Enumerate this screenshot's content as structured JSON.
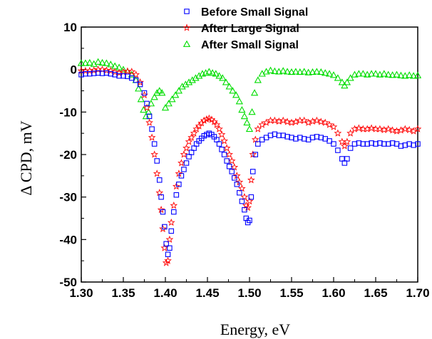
{
  "chart_data": {
    "type": "scatter",
    "title": "",
    "xlabel": "Energy, eV",
    "ylabel": "Δ CPD, mV",
    "xlim": [
      1.3,
      1.7
    ],
    "ylim": [
      -50,
      10
    ],
    "xticks": [
      "1.30",
      "1.35",
      "1.40",
      "1.45",
      "1.50",
      "1.55",
      "1.60",
      "1.65",
      "1.70"
    ],
    "yticks": [
      "10",
      "0",
      "-10",
      "-20",
      "-30",
      "-40",
      "-50"
    ],
    "grid": false,
    "legend_position": "top-center",
    "series": [
      {
        "name": "Before Small Signal",
        "marker": "square",
        "color": "#0000ff",
        "points": [
          [
            1.3,
            -1.2
          ],
          [
            1.305,
            -1.0
          ],
          [
            1.31,
            -1.0
          ],
          [
            1.315,
            -0.9
          ],
          [
            1.32,
            -0.8
          ],
          [
            1.325,
            -0.9
          ],
          [
            1.33,
            -0.8
          ],
          [
            1.335,
            -1.0
          ],
          [
            1.34,
            -1.2
          ],
          [
            1.345,
            -1.5
          ],
          [
            1.35,
            -1.5
          ],
          [
            1.355,
            -1.6
          ],
          [
            1.36,
            -2.0
          ],
          [
            1.365,
            -2.5
          ],
          [
            1.37,
            -3.5
          ],
          [
            1.375,
            -5.5
          ],
          [
            1.378,
            -8.0
          ],
          [
            1.381,
            -11.0
          ],
          [
            1.384,
            -14.0
          ],
          [
            1.387,
            -17.5
          ],
          [
            1.39,
            -21.5
          ],
          [
            1.393,
            -26.0
          ],
          [
            1.395,
            -30.0
          ],
          [
            1.397,
            -33.5
          ],
          [
            1.399,
            -37.0
          ],
          [
            1.401,
            -41.0
          ],
          [
            1.403,
            -43.5
          ],
          [
            1.405,
            -42.0
          ],
          [
            1.407,
            -38.0
          ],
          [
            1.41,
            -33.5
          ],
          [
            1.413,
            -29.5
          ],
          [
            1.416,
            -27.0
          ],
          [
            1.419,
            -25.0
          ],
          [
            1.422,
            -23.5
          ],
          [
            1.425,
            -22.0
          ],
          [
            1.428,
            -20.5
          ],
          [
            1.431,
            -19.5
          ],
          [
            1.434,
            -18.5
          ],
          [
            1.437,
            -17.5
          ],
          [
            1.44,
            -16.8
          ],
          [
            1.443,
            -16.2
          ],
          [
            1.446,
            -15.6
          ],
          [
            1.449,
            -15.3
          ],
          [
            1.452,
            -15.0
          ],
          [
            1.455,
            -15.3
          ],
          [
            1.458,
            -15.8
          ],
          [
            1.461,
            -16.5
          ],
          [
            1.464,
            -17.5
          ],
          [
            1.467,
            -18.8
          ],
          [
            1.47,
            -20.0
          ],
          [
            1.473,
            -21.5
          ],
          [
            1.476,
            -22.8
          ],
          [
            1.479,
            -24.0
          ],
          [
            1.482,
            -25.5
          ],
          [
            1.485,
            -27.0
          ],
          [
            1.488,
            -29.0
          ],
          [
            1.491,
            -31.0
          ],
          [
            1.494,
            -33.0
          ],
          [
            1.496,
            -35.0
          ],
          [
            1.498,
            -36.0
          ],
          [
            1.5,
            -35.5
          ],
          [
            1.502,
            -30.0
          ],
          [
            1.504,
            -24.0
          ],
          [
            1.507,
            -20.0
          ],
          [
            1.51,
            -17.5
          ],
          [
            1.515,
            -16.5
          ],
          [
            1.52,
            -16.0
          ],
          [
            1.525,
            -15.5
          ],
          [
            1.53,
            -15.2
          ],
          [
            1.535,
            -15.5
          ],
          [
            1.54,
            -15.5
          ],
          [
            1.545,
            -15.8
          ],
          [
            1.55,
            -16.0
          ],
          [
            1.555,
            -16.3
          ],
          [
            1.56,
            -16.0
          ],
          [
            1.565,
            -16.3
          ],
          [
            1.57,
            -16.5
          ],
          [
            1.575,
            -16.0
          ],
          [
            1.58,
            -15.8
          ],
          [
            1.585,
            -16.0
          ],
          [
            1.59,
            -16.3
          ],
          [
            1.595,
            -16.8
          ],
          [
            1.6,
            -17.5
          ],
          [
            1.605,
            -19.0
          ],
          [
            1.61,
            -21.0
          ],
          [
            1.613,
            -22.0
          ],
          [
            1.616,
            -21.0
          ],
          [
            1.62,
            -18.5
          ],
          [
            1.625,
            -17.5
          ],
          [
            1.63,
            -17.3
          ],
          [
            1.635,
            -17.5
          ],
          [
            1.64,
            -17.5
          ],
          [
            1.645,
            -17.3
          ],
          [
            1.65,
            -17.5
          ],
          [
            1.655,
            -17.3
          ],
          [
            1.66,
            -17.5
          ],
          [
            1.665,
            -17.5
          ],
          [
            1.67,
            -17.3
          ],
          [
            1.675,
            -17.5
          ],
          [
            1.68,
            -18.0
          ],
          [
            1.685,
            -17.8
          ],
          [
            1.69,
            -17.5
          ],
          [
            1.695,
            -17.8
          ],
          [
            1.7,
            -17.5
          ]
        ]
      },
      {
        "name": "After Large Signal",
        "marker": "star",
        "color": "#ff0000",
        "points": [
          [
            1.3,
            -0.3
          ],
          [
            1.305,
            -0.3
          ],
          [
            1.31,
            -0.3
          ],
          [
            1.315,
            -0.2
          ],
          [
            1.32,
            0.0
          ],
          [
            1.325,
            0.0
          ],
          [
            1.33,
            -0.2
          ],
          [
            1.335,
            -0.3
          ],
          [
            1.34,
            -0.6
          ],
          [
            1.345,
            -0.8
          ],
          [
            1.35,
            -0.6
          ],
          [
            1.355,
            -0.4
          ],
          [
            1.36,
            -0.5
          ],
          [
            1.365,
            -1.2
          ],
          [
            1.37,
            -3.0
          ],
          [
            1.375,
            -6.0
          ],
          [
            1.378,
            -9.0
          ],
          [
            1.381,
            -12.5
          ],
          [
            1.384,
            -16.0
          ],
          [
            1.387,
            -20.0
          ],
          [
            1.39,
            -24.5
          ],
          [
            1.393,
            -29.0
          ],
          [
            1.395,
            -33.0
          ],
          [
            1.397,
            -37.5
          ],
          [
            1.399,
            -42.0
          ],
          [
            1.401,
            -45.5
          ],
          [
            1.403,
            -45.0
          ],
          [
            1.405,
            -40.0
          ],
          [
            1.407,
            -36.0
          ],
          [
            1.41,
            -32.0
          ],
          [
            1.413,
            -27.5
          ],
          [
            1.416,
            -24.5
          ],
          [
            1.419,
            -22.0
          ],
          [
            1.422,
            -20.0
          ],
          [
            1.425,
            -18.5
          ],
          [
            1.428,
            -17.0
          ],
          [
            1.431,
            -16.0
          ],
          [
            1.434,
            -15.0
          ],
          [
            1.437,
            -14.0
          ],
          [
            1.44,
            -13.3
          ],
          [
            1.443,
            -12.6
          ],
          [
            1.446,
            -12.0
          ],
          [
            1.449,
            -11.7
          ],
          [
            1.452,
            -11.5
          ],
          [
            1.455,
            -11.8
          ],
          [
            1.458,
            -12.3
          ],
          [
            1.461,
            -13.0
          ],
          [
            1.464,
            -14.0
          ],
          [
            1.467,
            -15.3
          ],
          [
            1.47,
            -16.8
          ],
          [
            1.473,
            -18.5
          ],
          [
            1.476,
            -20.0
          ],
          [
            1.479,
            -21.5
          ],
          [
            1.482,
            -23.0
          ],
          [
            1.485,
            -25.0
          ],
          [
            1.488,
            -26.5
          ],
          [
            1.491,
            -28.0
          ],
          [
            1.494,
            -30.0
          ],
          [
            1.496,
            -32.0
          ],
          [
            1.498,
            -32.5
          ],
          [
            1.5,
            -31.0
          ],
          [
            1.502,
            -26.0
          ],
          [
            1.504,
            -20.0
          ],
          [
            1.507,
            -16.5
          ],
          [
            1.51,
            -14.0
          ],
          [
            1.515,
            -13.0
          ],
          [
            1.52,
            -12.5
          ],
          [
            1.525,
            -12.0
          ],
          [
            1.53,
            -12.0
          ],
          [
            1.535,
            -12.2
          ],
          [
            1.54,
            -12.0
          ],
          [
            1.545,
            -12.3
          ],
          [
            1.55,
            -12.5
          ],
          [
            1.555,
            -12.3
          ],
          [
            1.56,
            -12.0
          ],
          [
            1.565,
            -12.0
          ],
          [
            1.57,
            -12.5
          ],
          [
            1.575,
            -12.2
          ],
          [
            1.58,
            -12.0
          ],
          [
            1.585,
            -12.3
          ],
          [
            1.59,
            -12.5
          ],
          [
            1.595,
            -13.0
          ],
          [
            1.6,
            -13.5
          ],
          [
            1.605,
            -15.0
          ],
          [
            1.61,
            -17.0
          ],
          [
            1.613,
            -18.0
          ],
          [
            1.616,
            -17.0
          ],
          [
            1.62,
            -15.0
          ],
          [
            1.625,
            -14.0
          ],
          [
            1.63,
            -13.8
          ],
          [
            1.635,
            -14.0
          ],
          [
            1.64,
            -14.0
          ],
          [
            1.645,
            -13.8
          ],
          [
            1.65,
            -14.0
          ],
          [
            1.655,
            -14.0
          ],
          [
            1.66,
            -14.2
          ],
          [
            1.665,
            -14.0
          ],
          [
            1.67,
            -14.3
          ],
          [
            1.675,
            -14.5
          ],
          [
            1.68,
            -14.3
          ],
          [
            1.685,
            -14.0
          ],
          [
            1.69,
            -14.2
          ],
          [
            1.695,
            -14.5
          ],
          [
            1.7,
            -14.0
          ]
        ]
      },
      {
        "name": "After Small Signal",
        "marker": "triangle",
        "color": "#00dd00",
        "points": [
          [
            1.3,
            1.5
          ],
          [
            1.305,
            1.5
          ],
          [
            1.31,
            1.6
          ],
          [
            1.315,
            1.3
          ],
          [
            1.32,
            1.8
          ],
          [
            1.325,
            1.6
          ],
          [
            1.33,
            1.5
          ],
          [
            1.335,
            1.2
          ],
          [
            1.34,
            0.8
          ],
          [
            1.345,
            0.5
          ],
          [
            1.35,
            0.0
          ],
          [
            1.355,
            -0.5
          ],
          [
            1.36,
            -1.2
          ],
          [
            1.365,
            -2.5
          ],
          [
            1.368,
            -4.5
          ],
          [
            1.371,
            -7.0
          ],
          [
            1.374,
            -9.5
          ],
          [
            1.377,
            -11.0
          ],
          [
            1.38,
            -10.0
          ],
          [
            1.383,
            -8.0
          ],
          [
            1.387,
            -6.5
          ],
          [
            1.39,
            -5.5
          ],
          [
            1.393,
            -5.0
          ],
          [
            1.396,
            -5.5
          ],
          [
            1.4,
            -9.0
          ],
          [
            1.404,
            -8.0
          ],
          [
            1.408,
            -7.0
          ],
          [
            1.412,
            -6.0
          ],
          [
            1.416,
            -5.0
          ],
          [
            1.42,
            -4.0
          ],
          [
            1.424,
            -3.5
          ],
          [
            1.428,
            -3.0
          ],
          [
            1.432,
            -2.5
          ],
          [
            1.436,
            -2.0
          ],
          [
            1.44,
            -1.5
          ],
          [
            1.444,
            -1.0
          ],
          [
            1.448,
            -0.8
          ],
          [
            1.452,
            -0.5
          ],
          [
            1.456,
            -0.8
          ],
          [
            1.46,
            -1.0
          ],
          [
            1.464,
            -1.5
          ],
          [
            1.468,
            -2.0
          ],
          [
            1.472,
            -3.0
          ],
          [
            1.476,
            -4.0
          ],
          [
            1.48,
            -5.0
          ],
          [
            1.484,
            -6.0
          ],
          [
            1.488,
            -7.5
          ],
          [
            1.491,
            -9.5
          ],
          [
            1.494,
            -11.0
          ],
          [
            1.497,
            -12.5
          ],
          [
            1.5,
            -14.0
          ],
          [
            1.503,
            -10.0
          ],
          [
            1.506,
            -5.5
          ],
          [
            1.51,
            -2.5
          ],
          [
            1.515,
            -1.0
          ],
          [
            1.52,
            -0.5
          ],
          [
            1.525,
            -0.2
          ],
          [
            1.53,
            -0.4
          ],
          [
            1.535,
            -0.5
          ],
          [
            1.54,
            -0.3
          ],
          [
            1.545,
            -0.5
          ],
          [
            1.55,
            -0.6
          ],
          [
            1.555,
            -0.5
          ],
          [
            1.56,
            -0.6
          ],
          [
            1.565,
            -0.5
          ],
          [
            1.57,
            -0.7
          ],
          [
            1.575,
            -0.6
          ],
          [
            1.58,
            -0.5
          ],
          [
            1.585,
            -0.6
          ],
          [
            1.59,
            -0.8
          ],
          [
            1.595,
            -1.0
          ],
          [
            1.6,
            -1.3
          ],
          [
            1.605,
            -2.0
          ],
          [
            1.61,
            -3.0
          ],
          [
            1.613,
            -3.8
          ],
          [
            1.616,
            -3.0
          ],
          [
            1.62,
            -2.0
          ],
          [
            1.625,
            -1.2
          ],
          [
            1.63,
            -1.0
          ],
          [
            1.635,
            -1.0
          ],
          [
            1.64,
            -1.2
          ],
          [
            1.645,
            -1.0
          ],
          [
            1.65,
            -1.0
          ],
          [
            1.655,
            -1.2
          ],
          [
            1.66,
            -1.0
          ],
          [
            1.665,
            -1.2
          ],
          [
            1.67,
            -1.3
          ],
          [
            1.675,
            -1.2
          ],
          [
            1.68,
            -1.4
          ],
          [
            1.685,
            -1.5
          ],
          [
            1.69,
            -1.3
          ],
          [
            1.695,
            -1.5
          ],
          [
            1.7,
            -1.4
          ]
        ]
      }
    ]
  }
}
